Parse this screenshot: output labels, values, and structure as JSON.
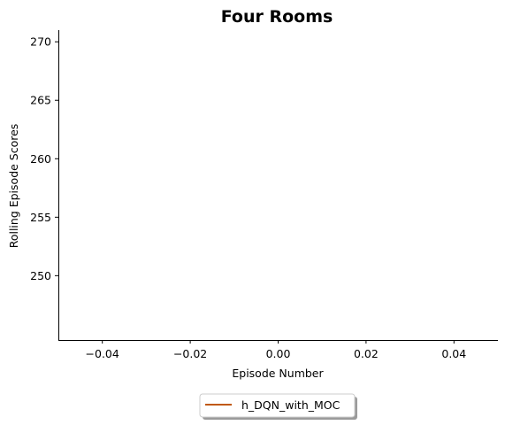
{
  "chart_data": {
    "type": "line",
    "title": "Four Rooms",
    "xlabel": "Episode Number",
    "ylabel": "Rolling Episode Scores",
    "xlim": [
      -0.05,
      0.05
    ],
    "ylim": [
      244.5,
      271
    ],
    "xticks": [
      -0.04,
      -0.02,
      0.0,
      0.02,
      0.04
    ],
    "xtick_labels": [
      "−0.04",
      "−0.02",
      "0.00",
      "0.02",
      "0.04"
    ],
    "yticks": [
      250,
      255,
      260,
      265,
      270
    ],
    "ytick_labels": [
      "250",
      "255",
      "260",
      "265",
      "270"
    ],
    "grid": false,
    "legend_position": "bottom-center",
    "series": [
      {
        "name": "h_DQN_with_MOC",
        "color": "#c0580e",
        "x": [],
        "y": []
      }
    ]
  }
}
